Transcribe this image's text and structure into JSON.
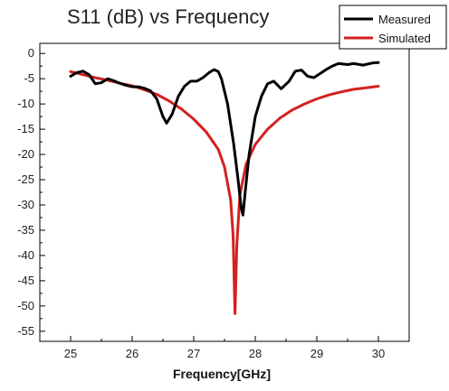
{
  "chart_data": {
    "type": "line",
    "title": "S11 (dB) vs Frequency",
    "xlabel": "Frequency[GHz]",
    "ylabel": "",
    "xlim": [
      24.5,
      30.5
    ],
    "ylim": [
      -57,
      2
    ],
    "x_ticks": [
      25,
      26,
      27,
      28,
      29,
      30
    ],
    "y_ticks": [
      0,
      -5,
      -10,
      -15,
      -20,
      -25,
      -30,
      -35,
      -40,
      -45,
      -50,
      -55
    ],
    "grid": false,
    "legend_position": "top-right",
    "series": [
      {
        "name": "Measured",
        "color": "#000000",
        "points": [
          [
            25.0,
            -4.5
          ],
          [
            25.1,
            -3.8
          ],
          [
            25.2,
            -3.5
          ],
          [
            25.3,
            -4.2
          ],
          [
            25.4,
            -6.0
          ],
          [
            25.5,
            -5.8
          ],
          [
            25.6,
            -5.0
          ],
          [
            25.7,
            -5.4
          ],
          [
            25.8,
            -5.9
          ],
          [
            25.9,
            -6.3
          ],
          [
            26.0,
            -6.6
          ],
          [
            26.1,
            -6.6
          ],
          [
            26.2,
            -6.9
          ],
          [
            26.3,
            -7.4
          ],
          [
            26.4,
            -9.0
          ],
          [
            26.5,
            -12.5
          ],
          [
            26.56,
            -13.8
          ],
          [
            26.65,
            -12.0
          ],
          [
            26.75,
            -8.5
          ],
          [
            26.85,
            -6.5
          ],
          [
            26.95,
            -5.5
          ],
          [
            27.05,
            -5.5
          ],
          [
            27.15,
            -4.8
          ],
          [
            27.25,
            -3.8
          ],
          [
            27.33,
            -3.2
          ],
          [
            27.4,
            -3.6
          ],
          [
            27.45,
            -5.0
          ],
          [
            27.55,
            -10.0
          ],
          [
            27.65,
            -18.0
          ],
          [
            27.72,
            -25.0
          ],
          [
            27.77,
            -30.5
          ],
          [
            27.8,
            -32.0
          ],
          [
            27.84,
            -27.0
          ],
          [
            27.9,
            -20.0
          ],
          [
            28.0,
            -12.5
          ],
          [
            28.1,
            -8.5
          ],
          [
            28.2,
            -6.0
          ],
          [
            28.3,
            -5.5
          ],
          [
            28.42,
            -7.0
          ],
          [
            28.55,
            -5.5
          ],
          [
            28.65,
            -3.5
          ],
          [
            28.75,
            -3.3
          ],
          [
            28.85,
            -4.5
          ],
          [
            28.95,
            -4.8
          ],
          [
            29.05,
            -4.0
          ],
          [
            29.15,
            -3.2
          ],
          [
            29.25,
            -2.5
          ],
          [
            29.35,
            -2.0
          ],
          [
            29.5,
            -2.2
          ],
          [
            29.6,
            -2.0
          ],
          [
            29.75,
            -2.3
          ],
          [
            29.9,
            -1.9
          ],
          [
            30.0,
            -1.8
          ]
        ]
      },
      {
        "name": "Simulated",
        "color": "#d42020",
        "points": [
          [
            25.0,
            -3.6
          ],
          [
            25.2,
            -4.2
          ],
          [
            25.4,
            -4.8
          ],
          [
            25.6,
            -5.3
          ],
          [
            25.8,
            -5.9
          ],
          [
            26.0,
            -6.4
          ],
          [
            26.2,
            -7.2
          ],
          [
            26.4,
            -8.1
          ],
          [
            26.6,
            -9.4
          ],
          [
            26.8,
            -11.0
          ],
          [
            27.0,
            -13.0
          ],
          [
            27.2,
            -15.5
          ],
          [
            27.4,
            -19.0
          ],
          [
            27.5,
            -22.5
          ],
          [
            27.6,
            -29.0
          ],
          [
            27.64,
            -36.0
          ],
          [
            27.67,
            -51.5
          ],
          [
            27.7,
            -38.0
          ],
          [
            27.75,
            -28.0
          ],
          [
            27.85,
            -22.0
          ],
          [
            28.0,
            -18.0
          ],
          [
            28.2,
            -15.0
          ],
          [
            28.4,
            -12.8
          ],
          [
            28.6,
            -11.2
          ],
          [
            28.8,
            -10.0
          ],
          [
            29.0,
            -9.0
          ],
          [
            29.2,
            -8.2
          ],
          [
            29.4,
            -7.6
          ],
          [
            29.6,
            -7.1
          ],
          [
            29.8,
            -6.8
          ],
          [
            30.0,
            -6.5
          ]
        ]
      }
    ]
  }
}
